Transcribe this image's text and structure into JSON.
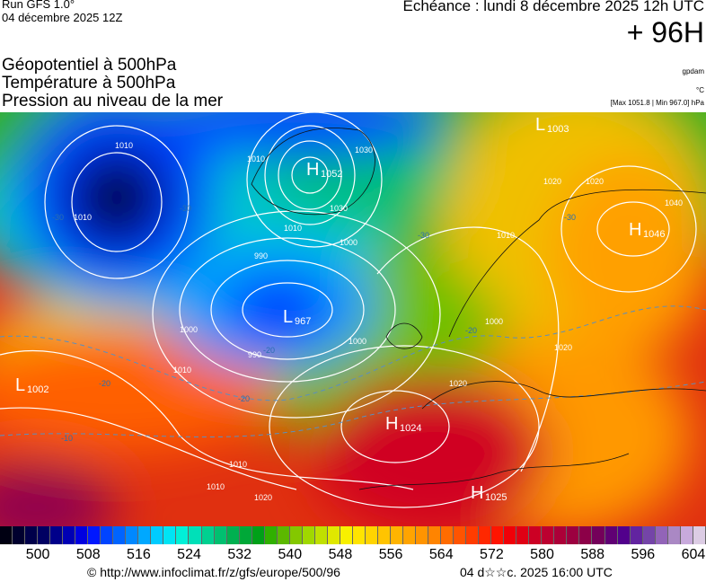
{
  "header": {
    "run": "Run GFS 1.0°",
    "run_date": "04 décembre 2025 12Z",
    "echeance": "Echéance : lundi 8 décembre 2025 12h UTC",
    "lead": "+ 96H",
    "titles": [
      "Géopotentiel à 500hPa",
      "Température à 500hPa",
      "Pression au niveau de la mer"
    ],
    "units": [
      "gpdam",
      "°C",
      "[Max 1051.8 | Min 967.0] hPa"
    ]
  },
  "map": {
    "pressure_centers": [
      {
        "type": "L",
        "value": "1003"
      },
      {
        "type": "H",
        "value": "1052"
      },
      {
        "type": "L",
        "value": "967"
      },
      {
        "type": "H",
        "value": "1046"
      },
      {
        "type": "L",
        "value": "1002"
      },
      {
        "type": "H",
        "value": "1024"
      },
      {
        "type": "H",
        "value": "1025"
      }
    ],
    "isobar_labels": [
      "1010",
      "1010",
      "1010",
      "1030",
      "1030",
      "1010",
      "1000",
      "990",
      "1000",
      "990",
      "1000",
      "1010",
      "1010",
      "1020",
      "1000",
      "1010",
      "1020",
      "1020",
      "1040",
      "1020",
      "1010",
      "1020"
    ],
    "temperature_labels": [
      "-30",
      "-30",
      "-30",
      "-30",
      "-20",
      "-20",
      "-20",
      "-20",
      "-10"
    ]
  },
  "colorbar": {
    "unit": "gpdam",
    "ticks": [
      "500",
      "508",
      "516",
      "524",
      "532",
      "540",
      "548",
      "556",
      "564",
      "572",
      "580",
      "588",
      "596",
      "604"
    ],
    "colors": [
      "#000012",
      "#00002e",
      "#00004a",
      "#000062",
      "#00008a",
      "#0000b4",
      "#0000e0",
      "#0018ff",
      "#0044ff",
      "#0064ff",
      "#0088ff",
      "#00a8ff",
      "#00ccff",
      "#00e4f4",
      "#00f0d8",
      "#00e0b8",
      "#00d090",
      "#00c070",
      "#00b050",
      "#00a838",
      "#00a018",
      "#30b000",
      "#5cb800",
      "#84c800",
      "#a0d800",
      "#c0e000",
      "#e0e800",
      "#f8f000",
      "#ffe400",
      "#ffd400",
      "#ffc400",
      "#ffb400",
      "#ffa400",
      "#ff9400",
      "#ff8400",
      "#ff6c00",
      "#ff5400",
      "#ff3c00",
      "#ff2800",
      "#ff1400",
      "#f00008",
      "#e00014",
      "#cc0024",
      "#bc0030",
      "#ac0038",
      "#9c0040",
      "#8c0048",
      "#74005a",
      "#600074",
      "#52008c",
      "#6224a0",
      "#7444a8",
      "#9264b8",
      "#aa88c4",
      "#c8aadc",
      "#dccce4"
    ]
  },
  "footer": {
    "source": "© http://www.infoclimat.fr/z/gfs/europe/500/96",
    "generated": "04 d☆☆c. 2025 16:00 UTC"
  }
}
